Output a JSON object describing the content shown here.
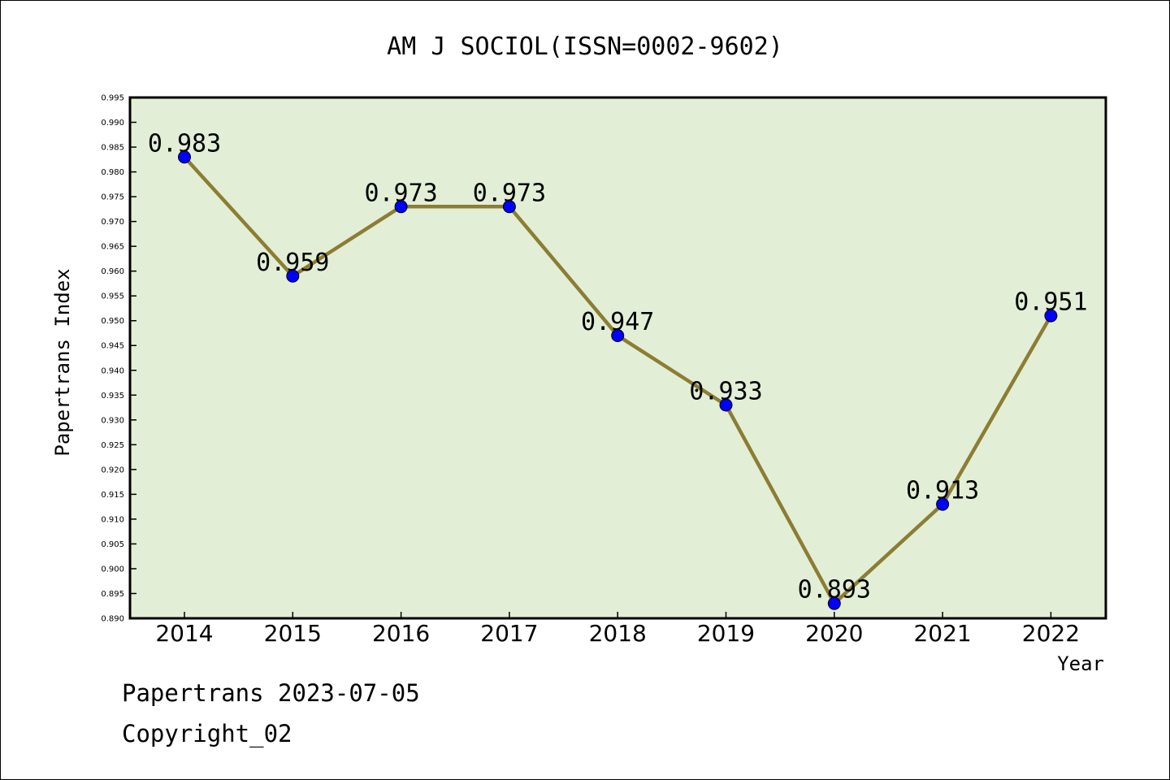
{
  "chart_data": {
    "type": "line",
    "title": "AM J SOCIOL(ISSN=0002-9602)",
    "xlabel": "Year",
    "ylabel": "Papertrans Index",
    "categories": [
      "2014",
      "2015",
      "2016",
      "2017",
      "2018",
      "2019",
      "2020",
      "2021",
      "2022"
    ],
    "series": [
      {
        "values": [
          0.983,
          0.959,
          0.973,
          0.973,
          0.947,
          0.933,
          0.893,
          0.913,
          0.951
        ],
        "labels": [
          "0.983",
          "0.959",
          "0.973",
          "0.973",
          "0.947",
          "0.933",
          "0.893",
          "0.913",
          "0.951"
        ],
        "line_color": "#8c7d34",
        "marker_color": "#0000ff"
      }
    ],
    "ylim": [
      0.89,
      0.995
    ],
    "yticks": [
      "0.890",
      "0.895",
      "0.900",
      "0.905",
      "0.910",
      "0.915",
      "0.920",
      "0.925",
      "0.930",
      "0.935",
      "0.940",
      "0.945",
      "0.950",
      "0.955",
      "0.960",
      "0.965",
      "0.970",
      "0.975",
      "0.980",
      "0.985",
      "0.990",
      "0.995"
    ],
    "grid": false,
    "plot_background": "#e2efd6",
    "legend": "none"
  },
  "footer": {
    "line1": "Papertrans 2023-07-05",
    "line2": "Copyright_02"
  }
}
